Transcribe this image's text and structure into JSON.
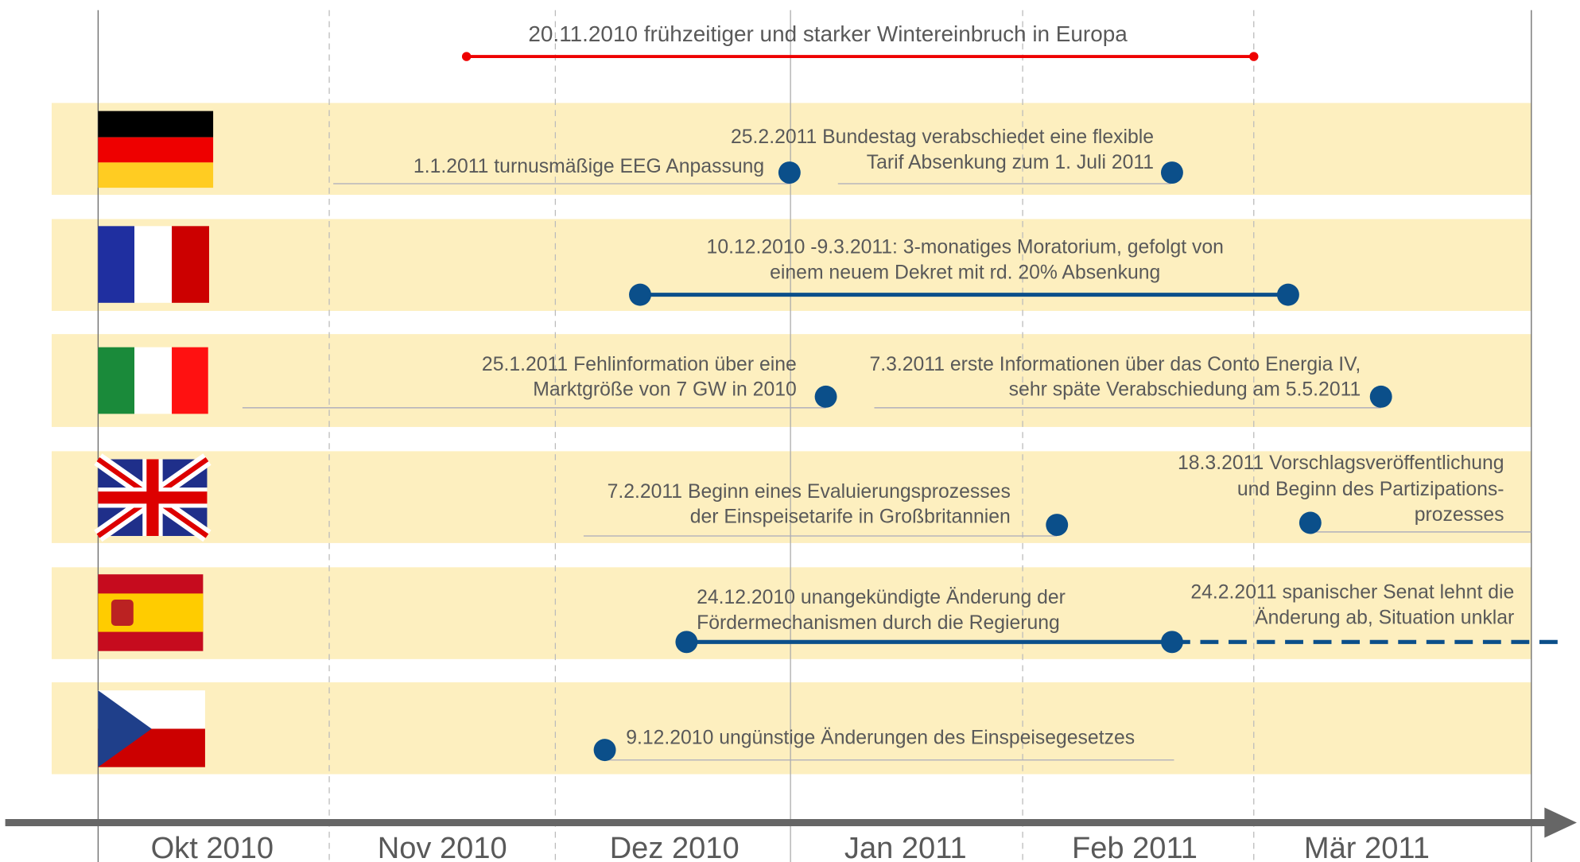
{
  "top_event": {
    "lines": [
      "20.11.2010 frühzeitiger und starker Wintereinbruch in Europa"
    ]
  },
  "rows": [
    {
      "events": [
        {
          "lines": [
            "1.1.2011 turnusmäßige EEG Anpassung"
          ]
        },
        {
          "lines": [
            "25.2.2011 Bundestag verabschiedet eine flexible",
            "Tarif Absenkung zum 1. Juli 2011"
          ]
        }
      ]
    },
    {
      "events": [
        {
          "lines": [
            "10.12.2010 -9.3.2011: 3-monatiges Moratorium, gefolgt von",
            "einem neuem Dekret mit rd. 20% Absenkung"
          ]
        }
      ]
    },
    {
      "events": [
        {
          "lines": [
            "25.1.2011 Fehlinformation über eine",
            "Marktgröße von 7 GW in 2010"
          ]
        },
        {
          "lines": [
            "7.3.2011 erste Informationen über das Conto Energia IV,",
            "sehr späte Verabschiedung am 5.5.2011"
          ]
        }
      ]
    },
    {
      "events": [
        {
          "lines": [
            "7.2.2011 Beginn eines Evaluierungsprozesses",
            "der Einspeisetarife in Großbritannien"
          ]
        },
        {
          "lines": [
            "18.3.2011 Vorschlagsveröffentlichung",
            "und Beginn des Partizipations-",
            "prozesses"
          ]
        }
      ]
    },
    {
      "events": [
        {
          "lines": [
            "24.12.2010 unangekündigte Änderung der",
            "Fördermechanismen durch die Regierung"
          ]
        },
        {
          "lines": [
            "24.2.2011 spanischer Senat lehnt die",
            "Änderung ab, Situation unklar"
          ]
        }
      ]
    },
    {
      "events": [
        {
          "lines": [
            "9.12.2010 ungünstige Änderungen des Einspeisegesetzes"
          ]
        }
      ]
    }
  ],
  "months": [
    "Okt 2010",
    "Nov 2010",
    "Dez 2010",
    "Jan 2011",
    "Feb 2011",
    "Mär 2011"
  ]
}
